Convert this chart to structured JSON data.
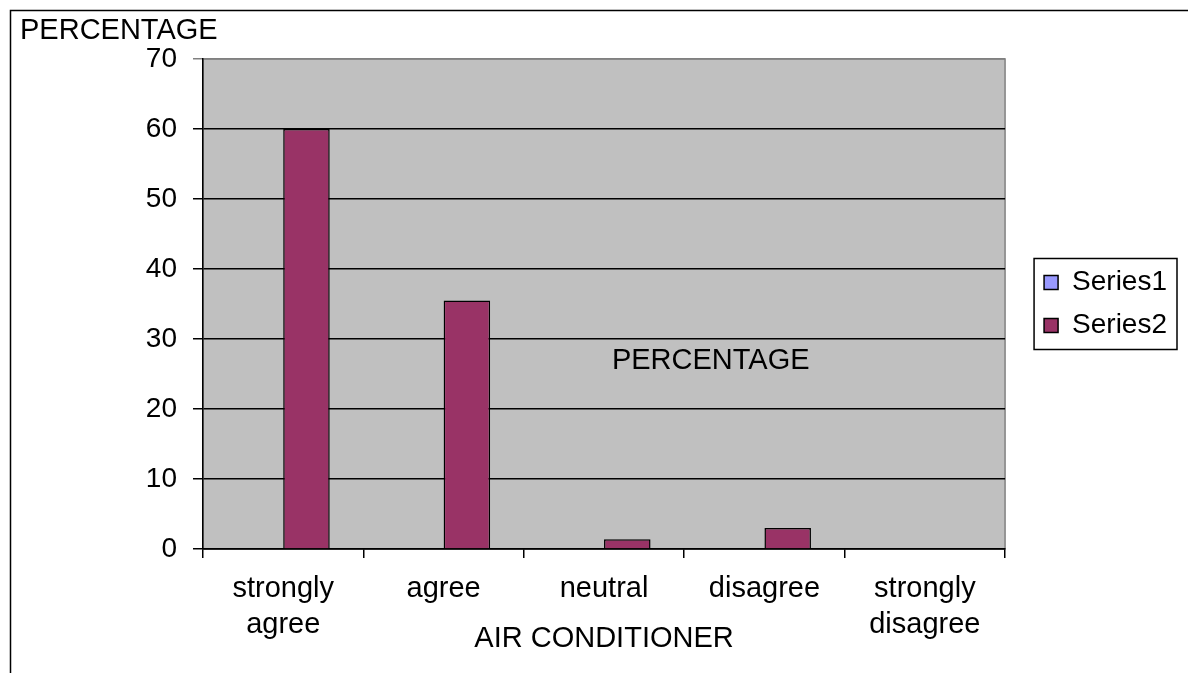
{
  "chart_data": {
    "type": "bar",
    "title": "PERCENTAGE",
    "ylabel": "PERCENTAGE",
    "xlabel": "AIR CONDITIONER",
    "categories": [
      "strongly agree",
      "agree",
      "neutral",
      "disagree",
      "strongly disagree"
    ],
    "series": [
      {
        "name": "Series1",
        "color": "#9999ff",
        "values": [
          null,
          null,
          null,
          null,
          null
        ]
      },
      {
        "name": "Series2",
        "color": "#993366",
        "values": [
          60,
          35.5,
          1.4,
          3,
          0
        ]
      }
    ],
    "ylim": [
      0,
      70
    ],
    "yticks": [
      0,
      10,
      20,
      30,
      40,
      50,
      60,
      70
    ],
    "grid": "y",
    "legend": "right"
  }
}
